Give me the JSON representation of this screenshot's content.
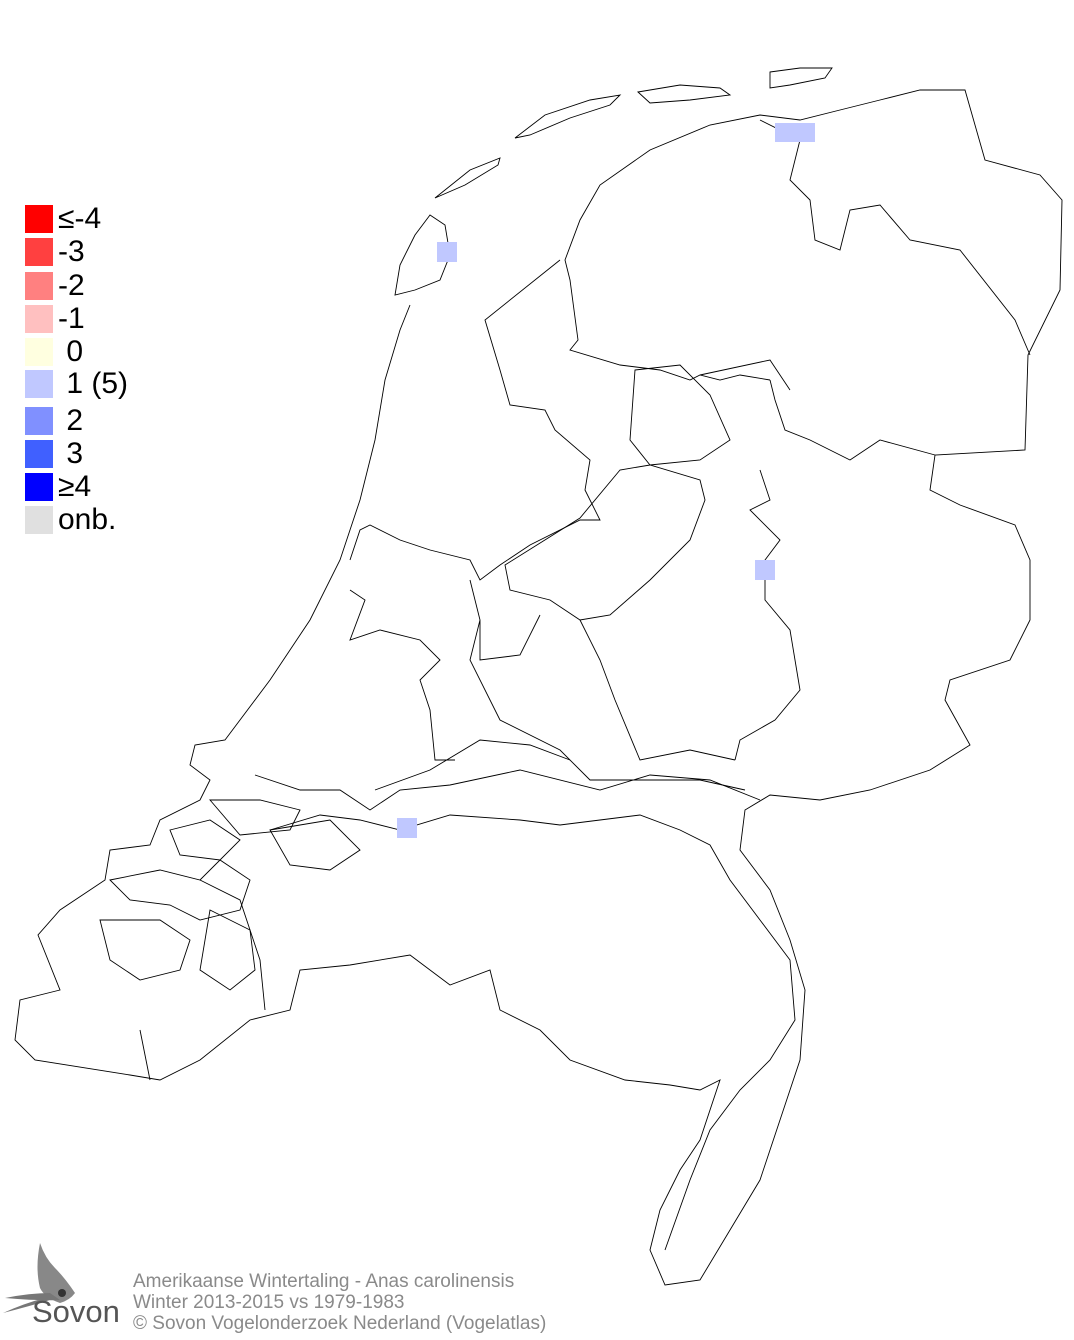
{
  "legend": {
    "items": [
      {
        "label": "≤-4",
        "color": "#ff0000"
      },
      {
        "label": "-3",
        "color": "#ff4040"
      },
      {
        "label": "-2",
        "color": "#ff8080"
      },
      {
        "label": "-1",
        "color": "#ffc0c0"
      },
      {
        "label": " 0",
        "color": "#ffffe0"
      },
      {
        "label": " 1 (5)",
        "color": "#c0c8ff"
      },
      {
        "label": " 2",
        "color": "#8090ff"
      },
      {
        "label": " 3",
        "color": "#4060ff"
      },
      {
        "label": "≥4",
        "color": "#0000ff"
      },
      {
        "label": "onb.",
        "color": "#e0e0e0"
      }
    ]
  },
  "map": {
    "occupied_cells_value": 1,
    "cell_color": "#c0c8ff",
    "outline_color": "#000000"
  },
  "footer": {
    "species": "Amerikaanse Wintertaling - Anas carolinensis",
    "period": "Winter 2013-2015 vs 1979-1983",
    "copyright": "© Sovon Vogelonderzoek Nederland (Vogelatlas)"
  },
  "logo": {
    "text": "Sovon"
  }
}
